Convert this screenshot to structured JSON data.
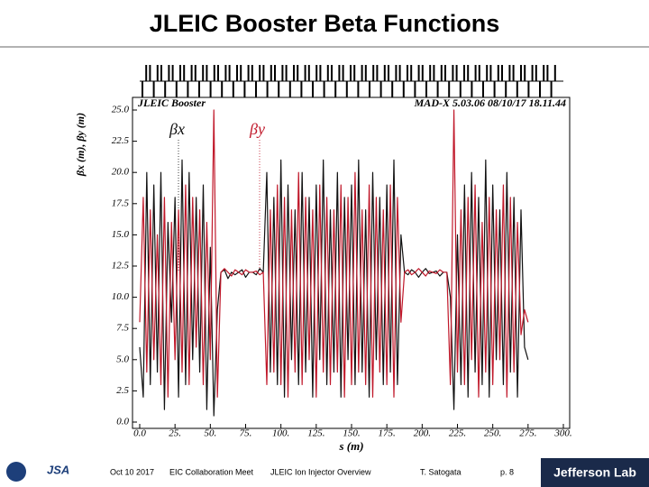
{
  "slide": {
    "title": "JLEIC Booster Beta Functions",
    "footer": {
      "date": "Oct 10 2017",
      "event": "EIC Collaboration Meet",
      "topic": "JLEIC Ion Injector Overview",
      "author": "T. Satogata",
      "page": "p. 8",
      "logo_left": "JSA",
      "logo_right": "Jefferson Lab"
    }
  },
  "chart_data": {
    "type": "line",
    "annotations": [
      "JLEIC Booster",
      "MAD-X 5.03.06  08/10/17 18.11.44"
    ],
    "x_label": "s (m)",
    "y_label": "βx (m), βy (m)",
    "xlim": [
      0,
      300
    ],
    "ylim": [
      0,
      25
    ],
    "xticks": [
      {
        "value": 0,
        "label": "0.0"
      },
      {
        "value": 25,
        "label": "25."
      },
      {
        "value": 50,
        "label": "50."
      },
      {
        "value": 75,
        "label": "75."
      },
      {
        "value": 100,
        "label": "100."
      },
      {
        "value": 125,
        "label": "125."
      },
      {
        "value": 150,
        "label": "150."
      },
      {
        "value": 175,
        "label": "175."
      },
      {
        "value": 200,
        "label": "200."
      },
      {
        "value": 225,
        "label": "225."
      },
      {
        "value": 250,
        "label": "250."
      },
      {
        "value": 275,
        "label": "275."
      },
      {
        "value": 300,
        "label": "300."
      }
    ],
    "yticks": [
      {
        "value": 0,
        "label": "0.0"
      },
      {
        "value": 2.5,
        "label": "2.5"
      },
      {
        "value": 5,
        "label": "5.0"
      },
      {
        "value": 7.5,
        "label": "7.5"
      },
      {
        "value": 10,
        "label": "10.0"
      },
      {
        "value": 12.5,
        "label": "12.5"
      },
      {
        "value": 15,
        "label": "15.0"
      },
      {
        "value": 17.5,
        "label": "17.5"
      },
      {
        "value": 20,
        "label": "20.0"
      },
      {
        "value": 22.5,
        "label": "22.5"
      },
      {
        "value": 25,
        "label": "25.0"
      }
    ],
    "x": [
      0,
      2.5,
      5,
      7.5,
      10,
      12.5,
      15,
      17.5,
      20,
      22.5,
      25,
      27.5,
      30,
      32.5,
      35,
      37.5,
      40,
      42.5,
      45,
      47.5,
      50,
      52.5,
      55,
      57.5,
      60,
      62.5,
      65,
      67.5,
      70,
      72.5,
      75,
      77.5,
      80,
      82.5,
      85,
      87.5,
      90,
      92.5,
      95,
      97.5,
      100,
      102.5,
      105,
      107.5,
      110,
      112.5,
      115,
      117.5,
      120,
      122.5,
      125,
      127.5,
      130,
      132.5,
      135,
      137.5,
      140,
      142.5,
      145,
      147.5,
      150,
      152.5,
      155,
      157.5,
      160,
      162.5,
      165,
      167.5,
      170,
      172.5,
      175,
      177.5,
      180,
      182.5,
      185,
      187.5,
      190,
      192.5,
      195,
      197.5,
      200,
      202.5,
      205,
      207.5,
      210,
      212.5,
      215,
      217.5,
      220,
      222.5,
      225,
      227.5,
      230,
      232.5,
      235,
      237.5,
      240,
      242.5,
      245,
      247.5,
      250,
      252.5,
      255,
      257.5,
      260,
      262.5,
      265,
      267.5,
      270,
      272.5,
      275
    ],
    "series": [
      {
        "name": "βx",
        "color": "#111111",
        "values": [
          6,
          2,
          20,
          3,
          19,
          4,
          20,
          1,
          16,
          8,
          18,
          2,
          21,
          3,
          20,
          5,
          18,
          4,
          19,
          1,
          14,
          0.5,
          9,
          12,
          12.2,
          11.5,
          12,
          11.8,
          12,
          12.2,
          11.6,
          12,
          12,
          11.8,
          12.3,
          12,
          20,
          4,
          18,
          3,
          21,
          2,
          19,
          5,
          17,
          3,
          20,
          4,
          18,
          2,
          19,
          5,
          21,
          3,
          17,
          4,
          20,
          2,
          18,
          5,
          19,
          3,
          21,
          4,
          17,
          2,
          20,
          5,
          18,
          3,
          19,
          4,
          21,
          3,
          15,
          12,
          11.8,
          12.2,
          12,
          11.6,
          12,
          12.3,
          11.9,
          12,
          12.1,
          11.7,
          12,
          12,
          10,
          1,
          15,
          3,
          19,
          2,
          20,
          4,
          18,
          3,
          21,
          2,
          19,
          5,
          17,
          3,
          20,
          4,
          18,
          2,
          17,
          6,
          5
        ]
      },
      {
        "name": "βy",
        "color": "#c0182a",
        "values": [
          8,
          18,
          4,
          17,
          5,
          15,
          3,
          18,
          2,
          16,
          5,
          17,
          4,
          19,
          3,
          18,
          6,
          17,
          3,
          16,
          5,
          25,
          2,
          12,
          12.3,
          12,
          11.7,
          12.2,
          12,
          11.8,
          12.2,
          12,
          12,
          12.1,
          11.8,
          12,
          3,
          17,
          4,
          19,
          3,
          18,
          2,
          17,
          4,
          20,
          3,
          18,
          5,
          17,
          2,
          19,
          4,
          18,
          3,
          17,
          4,
          19,
          2,
          18,
          3,
          20,
          4,
          17,
          3,
          19,
          2,
          18,
          4,
          17,
          3,
          19,
          2,
          18,
          8,
          12,
          12.2,
          11.8,
          12,
          12.3,
          12,
          11.7,
          12.1,
          12,
          11.9,
          12.2,
          12,
          12,
          3,
          25,
          4,
          17,
          3,
          18,
          5,
          19,
          2,
          16,
          4,
          18,
          3,
          17,
          5,
          19,
          2,
          18,
          4,
          16,
          7,
          9,
          8
        ]
      }
    ]
  }
}
